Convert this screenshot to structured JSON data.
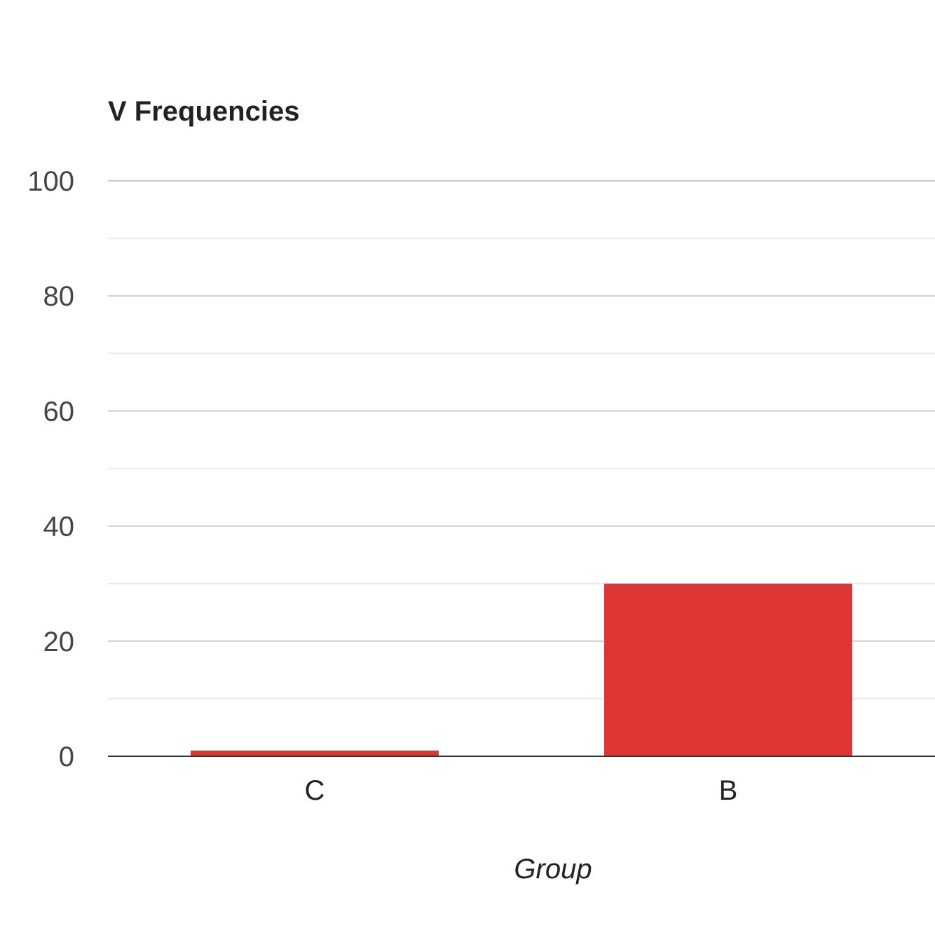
{
  "chart_data": {
    "type": "bar",
    "title": "V Frequencies",
    "xlabel": "Group",
    "ylabel": "",
    "categories": [
      "C",
      "B"
    ],
    "values": [
      1,
      30
    ],
    "ylim": [
      0,
      100
    ],
    "yticks": [
      0,
      20,
      40,
      60,
      80,
      100
    ],
    "minor_gridlines": [
      10,
      30,
      50,
      70,
      90
    ],
    "grid": true,
    "legend": "none",
    "colors": {
      "bar": "#e03535",
      "major_grid": "#cccccc",
      "minor_grid": "#ebebeb",
      "baseline": "#333333"
    }
  }
}
